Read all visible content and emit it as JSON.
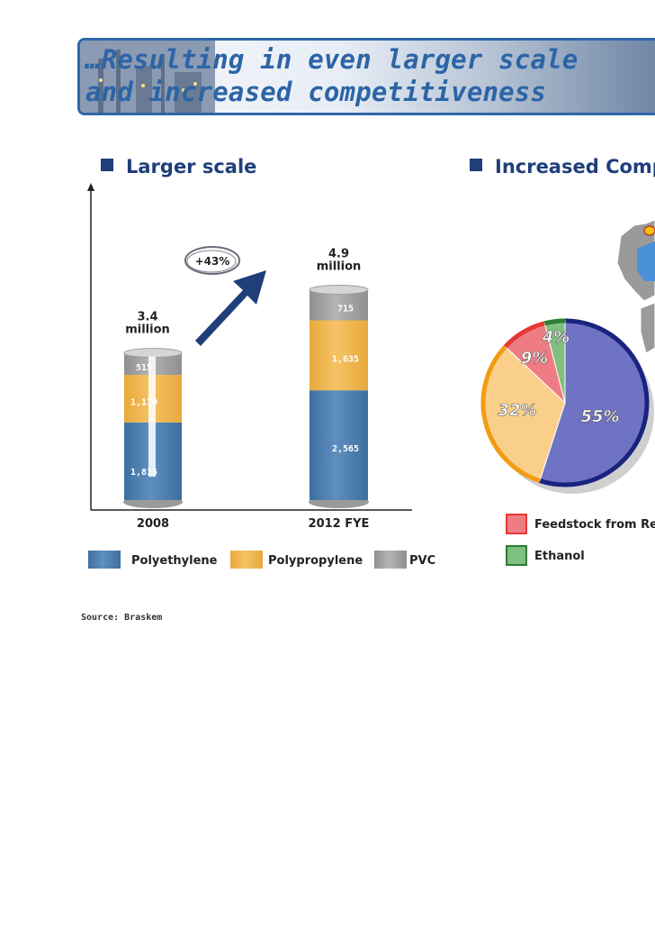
{
  "title": {
    "line1": "…Resulting in even larger scale",
    "line2": "and increased competitiveness"
  },
  "sections": {
    "left": "Larger scale",
    "right": "Increased Comp"
  },
  "colors": {
    "polyethylene": "#5f8fbd",
    "polypropylene": "#f5c265",
    "pvc": "#b4b4b4",
    "navy": "#1f3e7a",
    "pie_blue": "#6f73c4",
    "pie_orange": "#f9cf8a",
    "pie_red": "#ef7c85",
    "pie_green": "#7fbf7f"
  },
  "chart_data": [
    {
      "type": "bar",
      "stacked": true,
      "categories": [
        "2008",
        "2012 FYE"
      ],
      "series": [
        {
          "name": "Polyethylene",
          "values": [
            1815,
            2565
          ]
        },
        {
          "name": "Polypropylene",
          "values": [
            1110,
            1635
          ]
        },
        {
          "name": "PVC",
          "values": [
            515,
            715
          ]
        }
      ],
      "series_value_labels": {
        "Polyethylene": [
          "1,815",
          "2,565"
        ],
        "Polypropylene": [
          "1,110",
          "1,635"
        ],
        "PVC": [
          "515",
          "715"
        ]
      },
      "totals": [
        {
          "line1": "3.4",
          "line2": "million"
        },
        {
          "line1": "4.9",
          "line2": "million"
        }
      ],
      "growth_label": "+43%",
      "legend": [
        "Polyethylene",
        "Polypropylene",
        "PVC"
      ],
      "legend_placement": "bottom"
    },
    {
      "type": "pie",
      "slices": [
        {
          "label": "55%",
          "value": 55,
          "color": "#6f73c4"
        },
        {
          "label": "32%",
          "value": 32,
          "color": "#f9cf8a"
        },
        {
          "label": "9%",
          "value": 9,
          "color": "#ef7c85"
        },
        {
          "label": "4%",
          "value": 4,
          "color": "#7fbf7f"
        }
      ],
      "legend": [
        "Feedstock from Ref",
        "Ethanol"
      ]
    }
  ],
  "source": "Source: Braskem"
}
